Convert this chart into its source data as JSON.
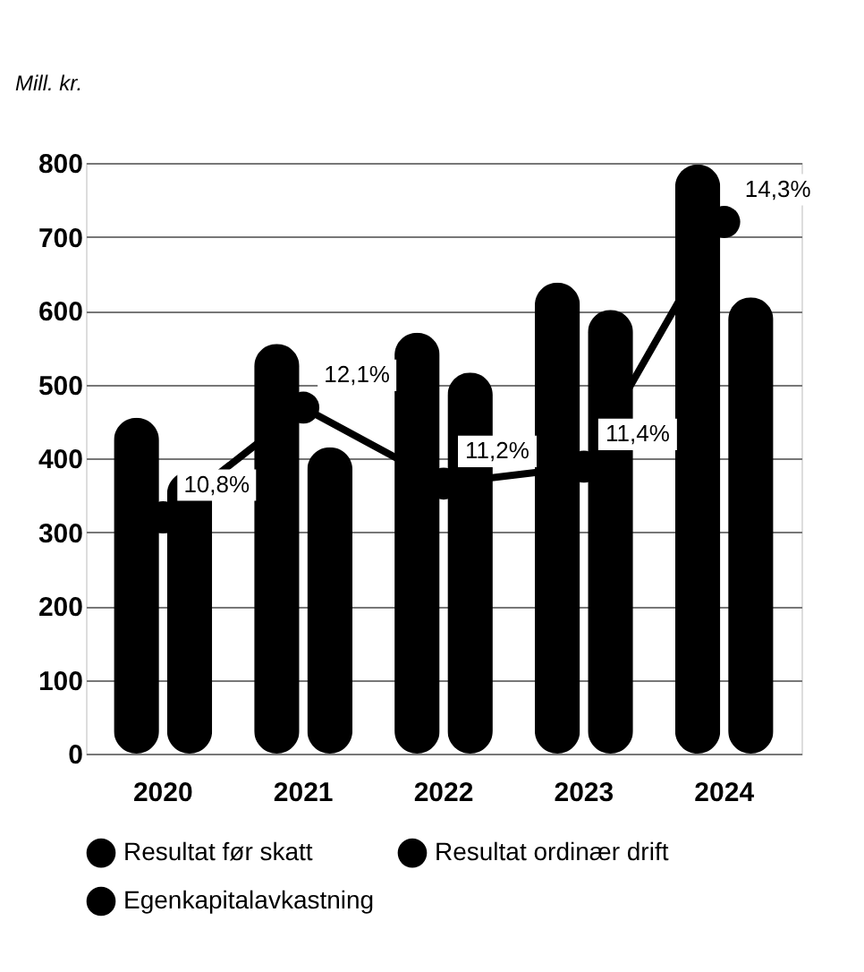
{
  "chart_data": {
    "type": "bar",
    "ylabel": "Mill. kr.",
    "categories": [
      "2020",
      "2021",
      "2022",
      "2023",
      "2024"
    ],
    "series": [
      {
        "name": "Resultat før skatt",
        "color": "#000000",
        "values": [
          455,
          555,
          570,
          638,
          798
        ]
      },
      {
        "name": "Resultat ordinær drift",
        "color": "#000000",
        "values": [
          382,
          415,
          516,
          601,
          618
        ]
      },
      {
        "name": "Egenkapitalavkastning",
        "type": "line",
        "axis": "y2",
        "color": "#000000",
        "values": [
          10.8,
          12.1,
          11.2,
          11.4,
          14.3
        ],
        "value_labels": [
          "10,8%",
          "12,1%",
          "11,2%",
          "11,4%",
          "14,3%"
        ]
      }
    ],
    "ylim": [
      0,
      800
    ],
    "yticks": [
      0,
      100,
      200,
      300,
      400,
      500,
      600,
      700,
      800
    ],
    "y2lim": [
      8,
      15
    ],
    "grid": "y",
    "legend": "bottom",
    "marker": "circle",
    "tick_labels": "xy"
  }
}
